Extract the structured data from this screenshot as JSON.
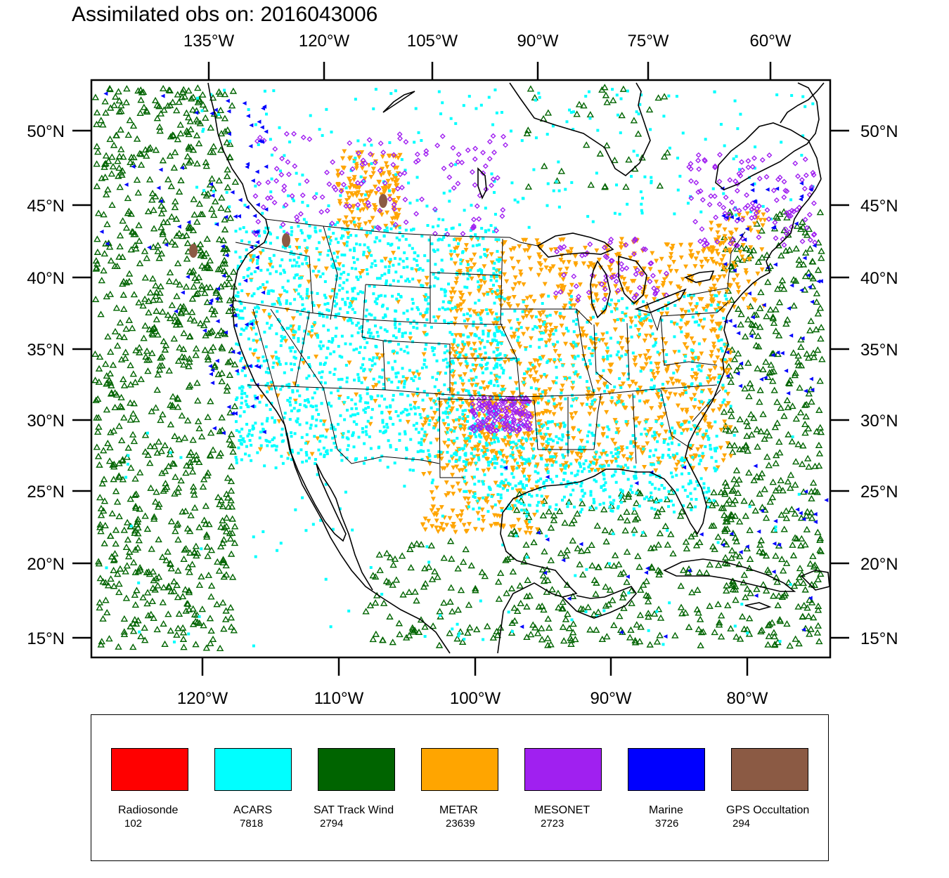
{
  "title": "Assimilated obs on: 2016043006",
  "top_axis_labels": [
    "135°W",
    "120°W",
    "105°W",
    "90°W",
    "75°W",
    "60°W"
  ],
  "bottom_axis_labels": [
    "120°W",
    "110°W",
    "100°W",
    "90°W",
    "80°W"
  ],
  "lat_labels": [
    "50°N",
    "45°N",
    "40°N",
    "35°N",
    "30°N",
    "25°N",
    "20°N",
    "15°N"
  ],
  "legend": [
    {
      "name": "Radiosonde",
      "count": "102",
      "color": "#ff0000"
    },
    {
      "name": "ACARS",
      "count": "7818",
      "color": "#00ffff"
    },
    {
      "name": "SAT Track Wind",
      "count": "2794",
      "color": "#006400"
    },
    {
      "name": "METAR",
      "count": "23639",
      "color": "#ffa500"
    },
    {
      "name": "MESONET",
      "count": "2723",
      "color": "#a020f0"
    },
    {
      "name": "Marine",
      "count": "3726",
      "color": "#0000ff"
    },
    {
      "name": "GPS Occultation",
      "count": "294",
      "color": "#8b5a44"
    }
  ],
  "colors": {
    "acars": "#00ffff",
    "satwind": "#006400",
    "metar": "#ffa500",
    "mesonet": "#a020f0",
    "marine": "#0000ff",
    "gps": "#8b5a44",
    "lines": "#000000"
  }
}
